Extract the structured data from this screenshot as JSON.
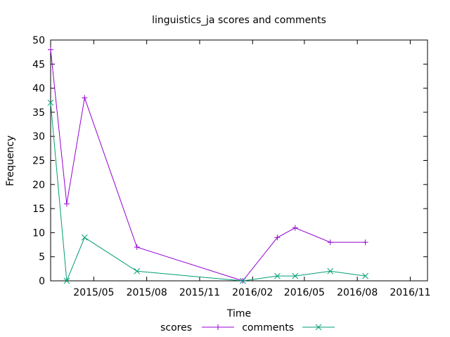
{
  "chart_data": {
    "type": "line",
    "title": "linguistics_ja scores and comments",
    "xlabel": "Time",
    "ylabel": "Frequency",
    "xlim": [
      "2015-02-15",
      "2016-12-01"
    ],
    "ylim": [
      0,
      50
    ],
    "x_ticks": [
      {
        "date": "2015-05-01",
        "label": "2015/05"
      },
      {
        "date": "2015-08-01",
        "label": "2015/08"
      },
      {
        "date": "2015-11-01",
        "label": "2015/11"
      },
      {
        "date": "2016-02-01",
        "label": "2016/02"
      },
      {
        "date": "2016-05-01",
        "label": "2016/05"
      },
      {
        "date": "2016-08-01",
        "label": "2016/08"
      },
      {
        "date": "2016-11-01",
        "label": "2016/11"
      }
    ],
    "y_ticks": [
      0,
      5,
      10,
      15,
      20,
      25,
      30,
      35,
      40,
      45,
      50
    ],
    "grid": false,
    "legend_position": "bottom-center",
    "series": [
      {
        "name": "scores",
        "color": "#9400d3",
        "marker": "plus",
        "points": [
          {
            "x": "2015-02-15",
            "y": 48
          },
          {
            "x": "2015-03-15",
            "y": 16
          },
          {
            "x": "2015-04-15",
            "y": 38
          },
          {
            "x": "2015-07-15",
            "y": 7
          },
          {
            "x": "2016-01-15",
            "y": 0
          },
          {
            "x": "2016-03-15",
            "y": 9
          },
          {
            "x": "2016-04-15",
            "y": 11
          },
          {
            "x": "2016-06-15",
            "y": 8
          },
          {
            "x": "2016-08-15",
            "y": 8
          }
        ]
      },
      {
        "name": "comments",
        "color": "#009e73",
        "marker": "cross",
        "points": [
          {
            "x": "2015-02-15",
            "y": 37
          },
          {
            "x": "2015-03-15",
            "y": 0
          },
          {
            "x": "2015-04-15",
            "y": 9
          },
          {
            "x": "2015-07-15",
            "y": 2
          },
          {
            "x": "2016-01-15",
            "y": 0
          },
          {
            "x": "2016-03-15",
            "y": 1
          },
          {
            "x": "2016-04-15",
            "y": 1
          },
          {
            "x": "2016-06-15",
            "y": 2
          },
          {
            "x": "2016-08-15",
            "y": 1
          }
        ]
      }
    ]
  }
}
